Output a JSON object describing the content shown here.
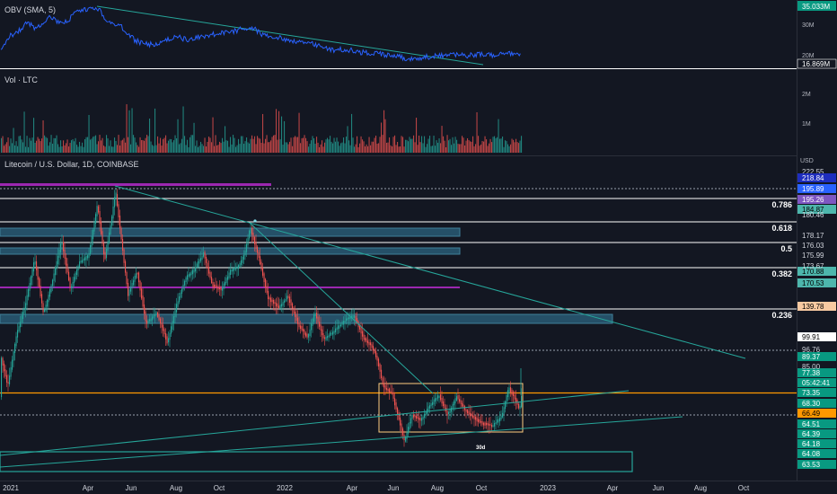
{
  "obv_pane": {
    "title": "OBV (SMA, 5)",
    "axis_ticks": [
      "30M",
      "20M"
    ],
    "badges": [
      {
        "text": "35.033M",
        "bg": "#089981",
        "fg": "#ffffff"
      },
      {
        "text": "16.869M",
        "bg": "#131722",
        "fg": "#ffffff"
      }
    ]
  },
  "volume_pane": {
    "title": "Vol · LTC",
    "axis_ticks": [
      "2M",
      "1M"
    ]
  },
  "price_pane": {
    "title": "Litecoin / U.S. Dollar, 1D, COINBASE",
    "currency": "USD",
    "axis_labels": [
      "222.55",
      "180.46",
      "178.17",
      "176.03",
      "175.99",
      "173.67",
      "96.76",
      "85.00"
    ],
    "price_badges": [
      {
        "text": "218.84",
        "bg": "#1e2dbd",
        "fg": "#ffffff"
      },
      {
        "text": "195.89",
        "bg": "#2962ff",
        "fg": "#ffffff"
      },
      {
        "text": "195.26",
        "bg": "#7e57c2",
        "fg": "#ffffff"
      },
      {
        "text": "184.87",
        "bg": "#4db6ac",
        "fg": "#000000"
      },
      {
        "text": "170.88",
        "bg": "#4db6ac",
        "fg": "#000000"
      },
      {
        "text": "170.53",
        "bg": "#4db6ac",
        "fg": "#000000"
      },
      {
        "text": "139.78",
        "bg": "#f7c9a1",
        "fg": "#000000"
      },
      {
        "text": "99.91",
        "bg": "#ffffff",
        "fg": "#000000"
      },
      {
        "text": "89.37",
        "bg": "#089981",
        "fg": "#ffffff"
      },
      {
        "text": "77.38",
        "bg": "#089981",
        "fg": "#ffffff"
      },
      {
        "text": "05:42:41",
        "bg": "#089981",
        "fg": "#ffffff"
      },
      {
        "text": "73.35",
        "bg": "#089981",
        "fg": "#ffffff"
      },
      {
        "text": "68.30",
        "bg": "#089981",
        "fg": "#ffffff"
      },
      {
        "text": "66.49",
        "bg": "#ff9800",
        "fg": "#000000"
      },
      {
        "text": "64.51",
        "bg": "#089981",
        "fg": "#ffffff"
      },
      {
        "text": "64.39",
        "bg": "#089981",
        "fg": "#ffffff"
      },
      {
        "text": "64.18",
        "bg": "#089981",
        "fg": "#ffffff"
      },
      {
        "text": "64.08",
        "bg": "#089981",
        "fg": "#ffffff"
      },
      {
        "text": "63.53",
        "bg": "#089981",
        "fg": "#ffffff"
      }
    ],
    "fib_labels": [
      "0.786",
      "0.618",
      "0.5",
      "0.382",
      "0.236"
    ],
    "annotation": "30d",
    "time_axis": [
      "2021",
      "Apr",
      "Jun",
      "Aug",
      "Oct",
      "2022",
      "Apr",
      "Jun",
      "Aug",
      "Oct",
      "2023",
      "Apr",
      "Jun",
      "Aug",
      "Oct"
    ]
  },
  "colors": {
    "background": "#131722",
    "up": "#26a69a",
    "down": "#ef5350",
    "obv_line": "#2962ff",
    "trendline": "#26a69a",
    "support_orange": "#ff9800",
    "purple_level": "#9c27b0",
    "zone_fill": "#2a5f7a",
    "rect_outline": "#ffcc80"
  }
}
